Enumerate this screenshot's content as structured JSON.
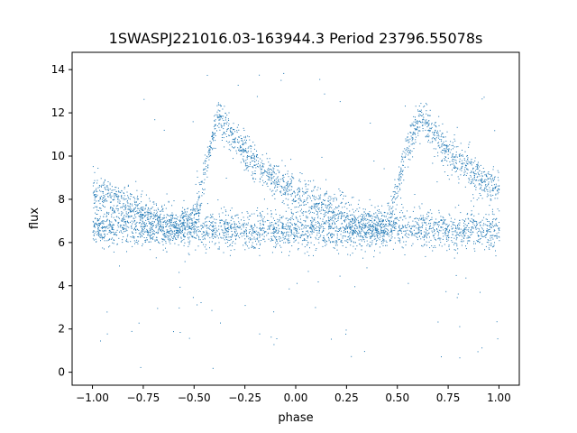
{
  "chart_data": {
    "type": "scatter",
    "title": "1SWASPJ221016.03-163944.3 Period 23796.55078s",
    "xlabel": "phase",
    "ylabel": "flux",
    "xlim": [
      -1.1,
      1.1
    ],
    "ylim": [
      -0.6,
      14.8
    ],
    "xticks": [
      -1.0,
      -0.75,
      -0.5,
      -0.25,
      0.0,
      0.25,
      0.5,
      0.75,
      1.0
    ],
    "xtick_labels": [
      "−1.00",
      "−0.75",
      "−0.50",
      "−0.25",
      "0.00",
      "0.25",
      "0.50",
      "0.75",
      "1.00"
    ],
    "yticks": [
      0,
      2,
      4,
      6,
      8,
      10,
      12,
      14
    ],
    "ytick_labels": [
      "0",
      "2",
      "4",
      "6",
      "8",
      "10",
      "12",
      "14"
    ],
    "grid": false,
    "marker_color": "#1f77b4",
    "series": [
      {
        "description_of_shape": "two superposed light-curve branches sampled densely across phase -1 to 1",
        "x": [
          -1.0,
          -0.9,
          -0.8,
          -0.7,
          -0.6,
          -0.5,
          -0.45,
          -0.4,
          -0.38,
          -0.35,
          -0.3,
          -0.25,
          -0.2,
          -0.1,
          0.0,
          0.1,
          0.2,
          0.3,
          0.4,
          0.45,
          0.5,
          0.55,
          0.6,
          0.62,
          0.65,
          0.7,
          0.75,
          0.8,
          0.9,
          1.0
        ],
        "y": [
          8.4,
          8.0,
          7.6,
          7.2,
          6.8,
          6.9,
          9.0,
          11.3,
          11.8,
          11.4,
          10.8,
          10.2,
          9.6,
          8.9,
          8.3,
          7.8,
          7.4,
          7.0,
          6.7,
          6.9,
          8.5,
          10.5,
          11.6,
          11.8,
          11.4,
          10.7,
          10.2,
          9.7,
          9.0,
          8.4
        ]
      },
      {
        "x": [
          -1.0,
          -0.75,
          -0.5,
          -0.25,
          0.0,
          0.25,
          0.5,
          0.75,
          1.0
        ],
        "y": [
          6.7,
          6.6,
          6.7,
          6.5,
          6.6,
          6.5,
          6.7,
          6.6,
          6.6
        ]
      }
    ]
  }
}
